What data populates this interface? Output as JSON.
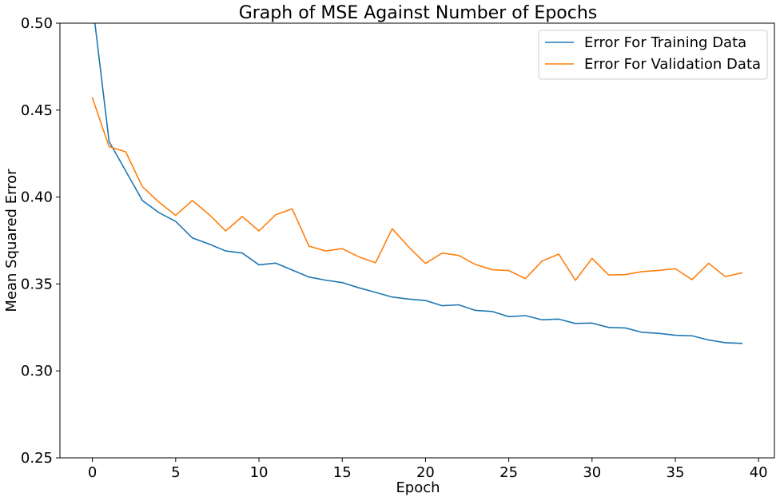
{
  "chart_data": {
    "type": "line",
    "title": "Graph of MSE Against Number of Epochs",
    "xlabel": "Epoch",
    "ylabel": "Mean Squared Error",
    "xlim": [
      -1.95,
      40.95
    ],
    "ylim": [
      0.25,
      0.5
    ],
    "xticks": [
      0,
      5,
      10,
      15,
      20,
      25,
      30,
      35,
      40
    ],
    "xtick_labels": [
      "0",
      "5",
      "10",
      "15",
      "20",
      "25",
      "30",
      "35",
      "40"
    ],
    "yticks": [
      0.25,
      0.3,
      0.35,
      0.4,
      0.45,
      0.5
    ],
    "ytick_labels": [
      "0.25",
      "0.30",
      "0.35",
      "0.40",
      "0.45",
      "0.50"
    ],
    "grid": false,
    "legend_position": "top-right",
    "x": [
      0,
      1,
      2,
      3,
      4,
      5,
      6,
      7,
      8,
      9,
      10,
      11,
      12,
      13,
      14,
      15,
      16,
      17,
      18,
      19,
      20,
      21,
      22,
      23,
      24,
      25,
      26,
      27,
      28,
      29,
      30,
      31,
      32,
      33,
      34,
      35,
      36,
      37,
      38,
      39
    ],
    "series": [
      {
        "name": "Error For Training Data",
        "color": "#1f77b4",
        "values": [
          0.512,
          0.432,
          0.415,
          0.398,
          0.391,
          0.386,
          0.3765,
          0.373,
          0.369,
          0.3678,
          0.361,
          0.362,
          0.358,
          0.354,
          0.3522,
          0.3508,
          0.3478,
          0.3452,
          0.3425,
          0.3413,
          0.3405,
          0.3375,
          0.338,
          0.3348,
          0.3342,
          0.3312,
          0.3318,
          0.3294,
          0.3298,
          0.3273,
          0.3275,
          0.325,
          0.3247,
          0.3222,
          0.3216,
          0.3205,
          0.3202,
          0.3178,
          0.3162,
          0.3158
        ]
      },
      {
        "name": "Error For Validation Data",
        "color": "#ff7f0e",
        "values": [
          0.457,
          0.429,
          0.426,
          0.406,
          0.397,
          0.3895,
          0.398,
          0.39,
          0.3805,
          0.3888,
          0.3805,
          0.3898,
          0.3932,
          0.3718,
          0.369,
          0.3703,
          0.3656,
          0.3622,
          0.3818,
          0.3712,
          0.3618,
          0.3678,
          0.3664,
          0.3612,
          0.3582,
          0.3577,
          0.3531,
          0.3632,
          0.3672,
          0.3521,
          0.3647,
          0.3552,
          0.3554,
          0.3571,
          0.3578,
          0.3588,
          0.3525,
          0.3619,
          0.3542,
          0.3564
        ]
      }
    ]
  }
}
